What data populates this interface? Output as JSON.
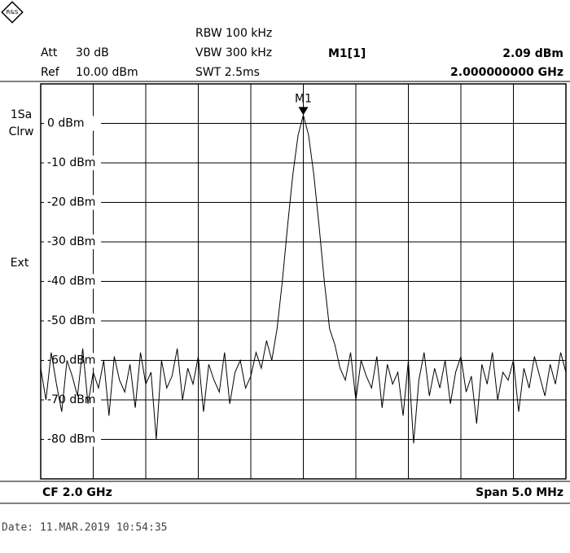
{
  "header": {
    "att_label": "Att",
    "att": "30 dB",
    "ref_label": "Ref",
    "ref": "10.00 dBm",
    "rbw": "RBW 100 kHz",
    "vbw": "VBW 300 kHz",
    "swt": "SWT 2.5ms",
    "marker_name": "M1[1]",
    "marker_level": "2.09 dBm",
    "marker_freq": "2.000000000 GHz",
    "side": [
      "1Sa",
      "Clrw",
      "Ext"
    ],
    "cf": "CF 2.0 GHz",
    "span": "Span 5.0 MHz",
    "date": "Date: 11.MAR.2019  10:54:35"
  },
  "chart_data": {
    "type": "line",
    "x": [
      1997.5,
      1997.55,
      1997.6,
      1997.65,
      1997.7,
      1997.75,
      1997.8,
      1997.85,
      1997.9,
      1997.95,
      1998,
      1998.05,
      1998.1,
      1998.15,
      1998.2,
      1998.25,
      1998.3,
      1998.35,
      1998.4,
      1998.45,
      1998.5,
      1998.55,
      1998.6,
      1998.65,
      1998.7,
      1998.75,
      1998.8,
      1998.85,
      1998.9,
      1998.95,
      1999,
      1999.05,
      1999.1,
      1999.15,
      1999.2,
      1999.25,
      1999.3,
      1999.35,
      1999.4,
      1999.45,
      1999.5,
      1999.55,
      1999.6,
      1999.65,
      1999.7,
      1999.75,
      1999.8,
      1999.85,
      1999.9,
      1999.95,
      2000,
      2000.05,
      2000.1,
      2000.15,
      2000.2,
      2000.25,
      2000.3,
      2000.35,
      2000.4,
      2000.45,
      2000.5,
      2000.55,
      2000.6,
      2000.65,
      2000.7,
      2000.75,
      2000.8,
      2000.85,
      2000.9,
      2000.95,
      2001,
      2001.05,
      2001.1,
      2001.15,
      2001.2,
      2001.25,
      2001.3,
      2001.35,
      2001.4,
      2001.45,
      2001.5,
      2001.55,
      2001.6,
      2001.65,
      2001.7,
      2001.75,
      2001.8,
      2001.85,
      2001.9,
      2001.95,
      2002,
      2002.05,
      2002.1,
      2002.15,
      2002.2,
      2002.25,
      2002.3,
      2002.35,
      2002.4,
      2002.45,
      2002.5
    ],
    "series": [
      {
        "color": "#000000",
        "values": [
          -62,
          -70,
          -58,
          -66,
          -73,
          -60,
          -64,
          -69,
          -57,
          -71,
          -63,
          -67,
          -60,
          -74,
          -59,
          -65,
          -68,
          -61,
          -72,
          -58,
          -66,
          -63,
          -80,
          -60,
          -67,
          -64,
          -57,
          -70,
          -62,
          -66,
          -59,
          -73,
          -61,
          -65,
          -68,
          -58,
          -71,
          -63,
          -60,
          -67,
          -64,
          -58,
          -62,
          -55,
          -60,
          -52,
          -40,
          -26,
          -13,
          -3,
          2.09,
          -3,
          -13,
          -26,
          -40,
          -52,
          -56,
          -62,
          -65,
          -58,
          -70,
          -60,
          -64,
          -67,
          -59,
          -72,
          -61,
          -66,
          -63,
          -74,
          -60,
          -81,
          -65,
          -58,
          -69,
          -62,
          -67,
          -60,
          -71,
          -63,
          -59,
          -68,
          -64,
          -76,
          -61,
          -66,
          -58,
          -70,
          -63,
          -65,
          -60,
          -73,
          -62,
          -67,
          -59,
          -64,
          -69,
          -61,
          -66,
          -58,
          -63
        ]
      }
    ],
    "marker": {
      "name": "M1",
      "x": 2000,
      "y": 2.09
    },
    "xlim": [
      1997.5,
      2002.5
    ],
    "xticks": [
      1997.5,
      1998,
      1998.5,
      1999,
      1999.5,
      2000,
      2000.5,
      2001,
      2001.5,
      2002,
      2002.5
    ],
    "ylim": [
      -90,
      10
    ],
    "yticks": [
      {
        "value": 0,
        "label": "0 dBm"
      },
      {
        "value": -10,
        "label": "-10 dBm"
      },
      {
        "value": -20,
        "label": "-20 dBm"
      },
      {
        "value": -30,
        "label": "-30 dBm"
      },
      {
        "value": -40,
        "label": "-40 dBm"
      },
      {
        "value": -50,
        "label": "-50 dBm"
      },
      {
        "value": -60,
        "label": "-60 dBm"
      },
      {
        "value": -70,
        "label": "-70 dBm"
      },
      {
        "value": -80,
        "label": "-80 dBm"
      }
    ],
    "grid": true
  }
}
